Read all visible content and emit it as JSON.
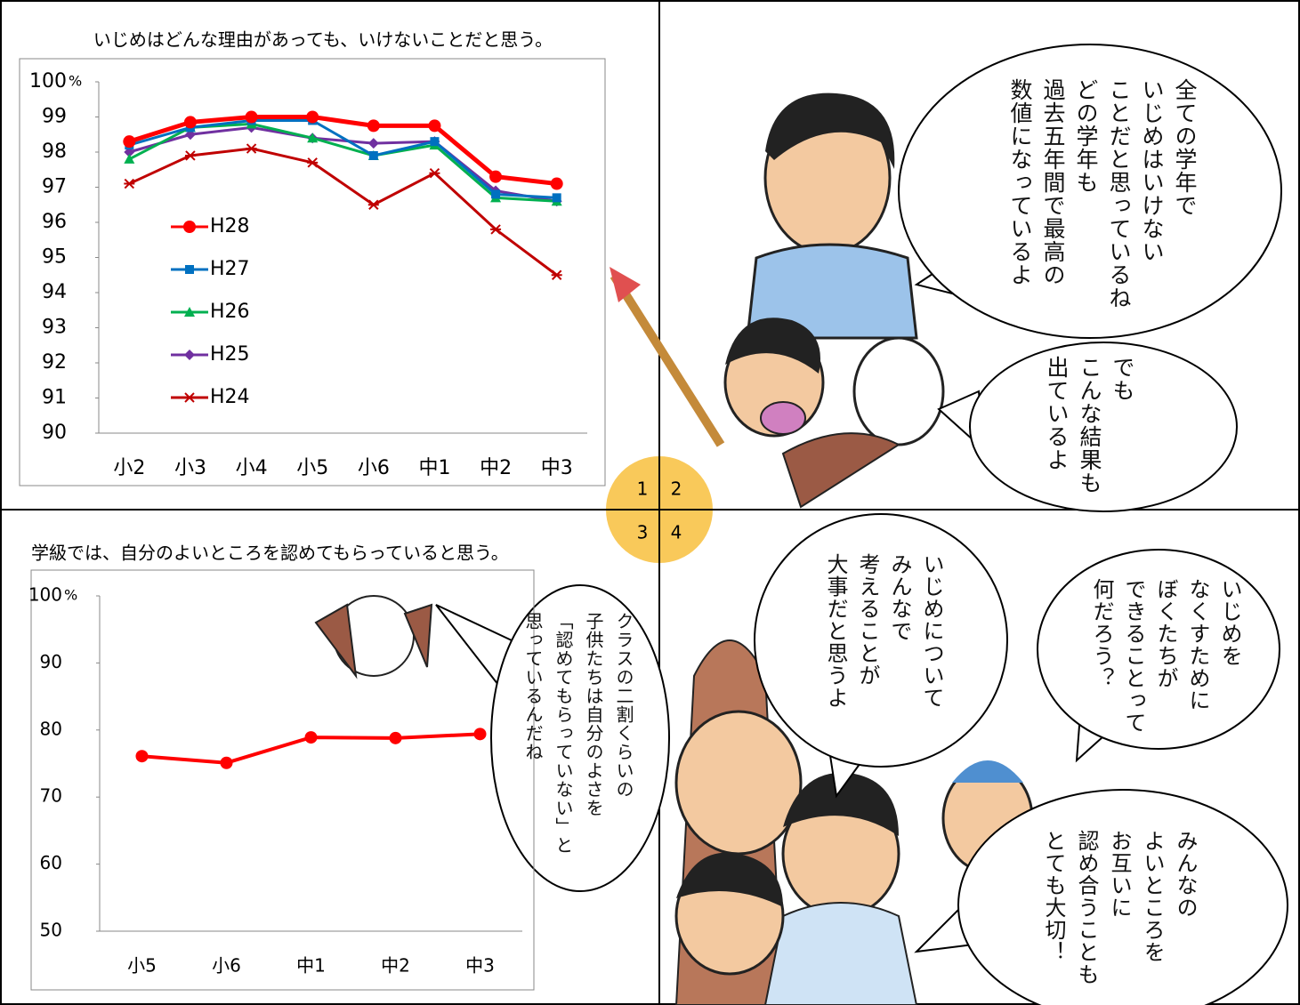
{
  "chart_data": [
    {
      "type": "line",
      "title": "いじめはどんな理由があっても、いけないことだと思う。",
      "y_unit": "%",
      "categories": [
        "小2",
        "小3",
        "小4",
        "小5",
        "小6",
        "中1",
        "中2",
        "中3"
      ],
      "ylim": [
        90,
        100
      ],
      "yticks": [
        90,
        91,
        92,
        93,
        94,
        95,
        96,
        97,
        98,
        99,
        100
      ],
      "legend": "inside-left",
      "series": [
        {
          "name": "H28",
          "color": "#ff0000",
          "marker": "circle",
          "values": [
            98.3,
            98.85,
            99.0,
            99.0,
            98.75,
            98.75,
            97.3,
            97.1
          ]
        },
        {
          "name": "H27",
          "color": "#0070c0",
          "marker": "square",
          "values": [
            98.2,
            98.7,
            98.9,
            98.9,
            97.9,
            98.3,
            96.8,
            96.7
          ]
        },
        {
          "name": "H26",
          "color": "#00b050",
          "marker": "triangle",
          "values": [
            97.8,
            98.7,
            98.8,
            98.4,
            97.9,
            98.2,
            96.7,
            96.6
          ]
        },
        {
          "name": "H25",
          "color": "#7030a0",
          "marker": "diamond",
          "values": [
            98.0,
            98.5,
            98.7,
            98.4,
            98.25,
            98.3,
            96.9,
            96.6
          ]
        },
        {
          "name": "H24",
          "color": "#c00000",
          "marker": "star",
          "values": [
            97.1,
            97.9,
            98.1,
            97.7,
            96.5,
            97.4,
            95.8,
            94.5
          ]
        }
      ]
    },
    {
      "type": "line",
      "title": "学級では、自分のよいところを認めてもらっていると思う。",
      "y_unit": "%",
      "categories": [
        "小5",
        "小6",
        "中1",
        "中2",
        "中3"
      ],
      "ylim": [
        50,
        100
      ],
      "yticks": [
        50,
        60,
        70,
        80,
        90,
        100
      ],
      "color": "#ff0000",
      "marker": "circle",
      "values": [
        76.1,
        75.1,
        78.9,
        78.8,
        79.4
      ]
    }
  ],
  "panel_numbers": [
    "1",
    "2",
    "3",
    "4"
  ],
  "bubbles": [
    {
      "lines": [
        "全ての学年で",
        "いじめはいけない",
        "ことだと思っているね",
        "どの学年も",
        "過去五年間で最高の",
        "数値になっているよ"
      ]
    },
    {
      "lines": [
        "でも",
        "こんな結果も",
        "出ているよ"
      ]
    },
    {
      "lines": [
        "クラスの二割くらいの",
        "子供たちは自分のよさを",
        "「認めてもらっていない」と",
        "思っているんだね"
      ]
    },
    {
      "lines": [
        "いじめについて",
        "みんなで",
        "考えることが",
        "大事だと思うよ"
      ]
    },
    {
      "lines": [
        "いじめを",
        "なくすために",
        "ぼくたちが",
        "できることって",
        "何だろう？"
      ]
    },
    {
      "lines": [
        "みんなの",
        "よいところを",
        "お互いに",
        "認め合うことも",
        "とても大切！"
      ]
    }
  ]
}
